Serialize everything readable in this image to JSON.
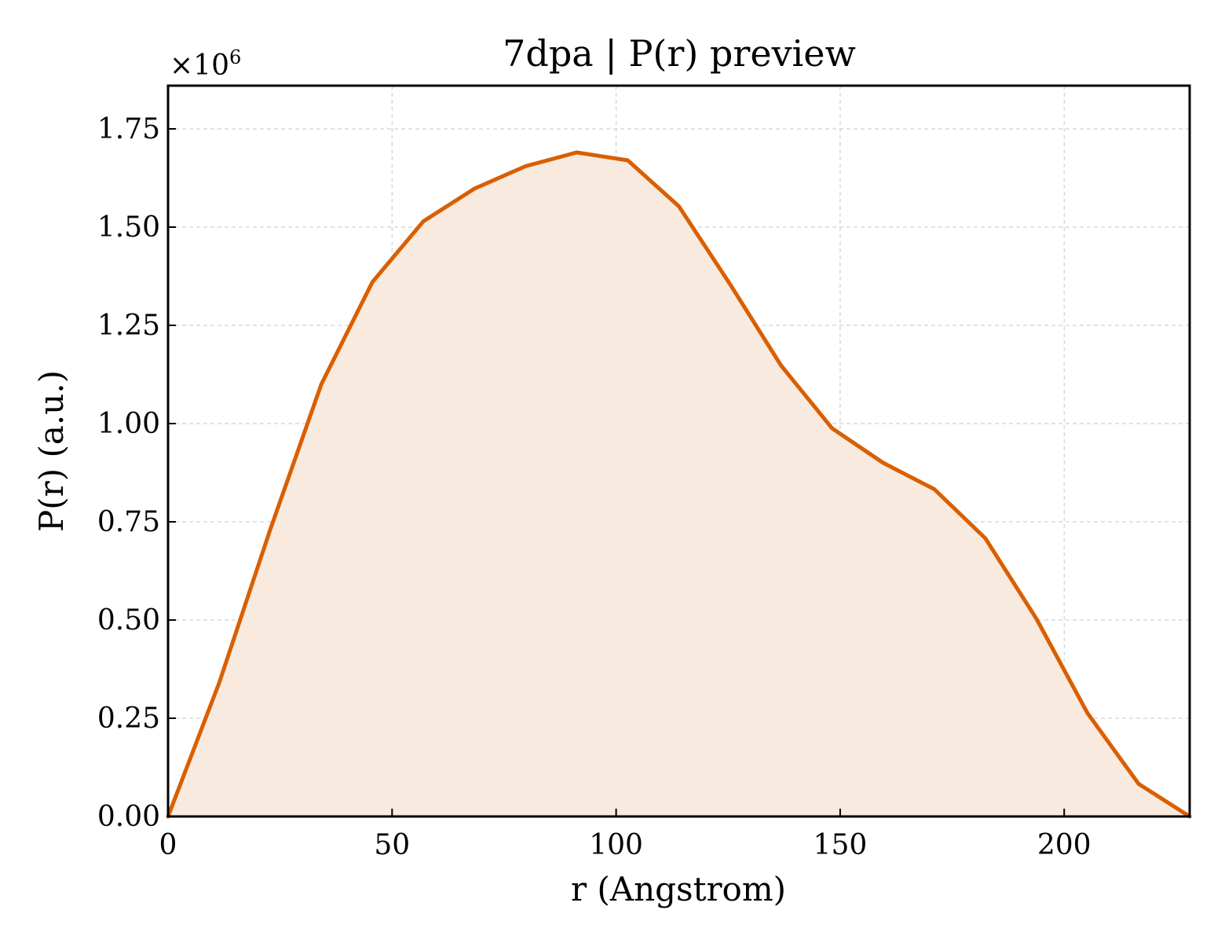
{
  "chart_data": {
    "type": "area",
    "title": "7dpa | P(r) preview",
    "xlabel": "r (Angstrom)",
    "ylabel": "P(r) (a.u.)",
    "y_offset_text": "×10",
    "y_offset_exponent": "6",
    "xlim": [
      0,
      228
    ],
    "ylim": [
      0,
      1.86
    ],
    "xticks": [
      0,
      50,
      100,
      150,
      200
    ],
    "yticks": [
      0.0,
      0.25,
      0.5,
      0.75,
      1.0,
      1.25,
      1.5,
      1.75
    ],
    "xtick_labels": [
      "0",
      "50",
      "100",
      "150",
      "200"
    ],
    "ytick_labels": [
      "0.00",
      "0.25",
      "0.50",
      "0.75",
      "1.00",
      "1.25",
      "1.50",
      "1.75"
    ],
    "grid": true,
    "line_color": "#d95f02",
    "fill_color": "#f8eadf",
    "series": [
      {
        "x": [
          0,
          11.4,
          22.8,
          34.2,
          45.6,
          57.0,
          68.4,
          79.8,
          91.2,
          102.6,
          114.0,
          125.4,
          136.8,
          148.2,
          159.6,
          171.0,
          182.4,
          193.8,
          205.2,
          216.6,
          228.0
        ],
        "y": [
          0.0,
          0.34,
          0.73,
          1.1,
          1.36,
          1.515,
          1.598,
          1.655,
          1.69,
          1.67,
          1.553,
          1.355,
          1.148,
          0.988,
          0.9,
          0.833,
          0.708,
          0.503,
          0.263,
          0.083,
          0.0
        ]
      }
    ]
  }
}
